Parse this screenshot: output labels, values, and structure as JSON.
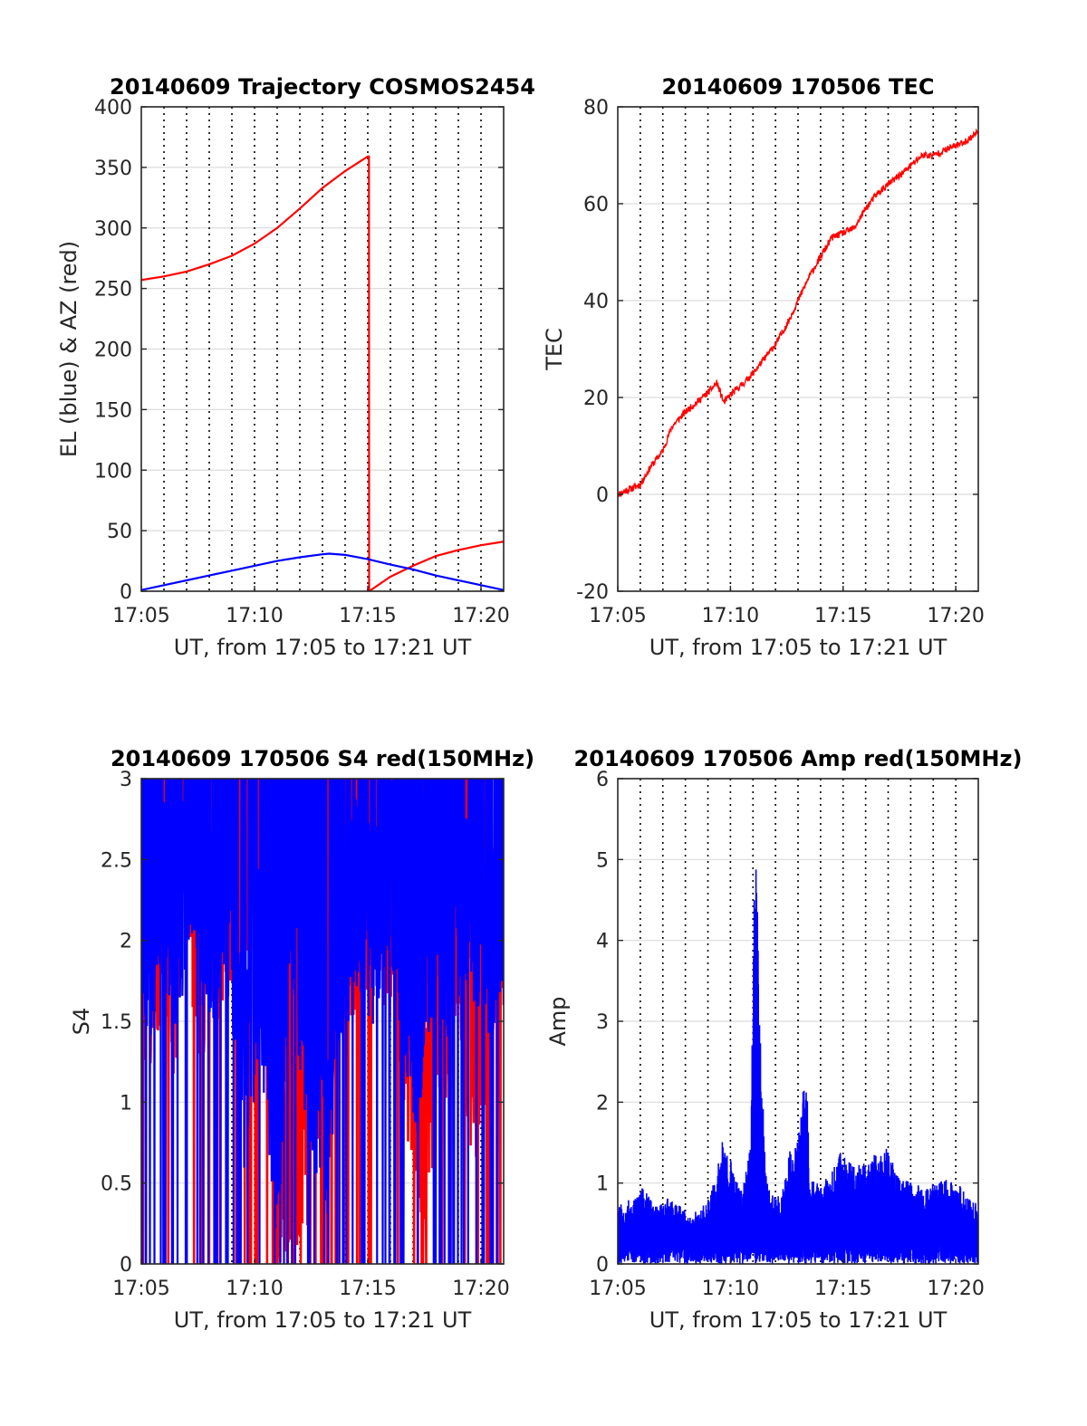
{
  "colors": {
    "red": "#ff0000",
    "blue": "#0000ff",
    "axis": "#262626",
    "grid": "#dcdcdc",
    "vline": "#000000"
  },
  "chart_data": [
    {
      "id": "trajectory",
      "type": "line",
      "title": "20140609 Trajectory COSMOS2454",
      "xlabel": "UT, from 17:05 to 17:21 UT",
      "ylabel": "EL (blue) & AZ (red)",
      "xlim": [
        0,
        16
      ],
      "ylim": [
        0,
        400
      ],
      "x_ticks": [
        0,
        5,
        10,
        15
      ],
      "x_tick_labels": [
        "17:05",
        "17:10",
        "17:15",
        "17:20"
      ],
      "y_ticks": [
        0,
        50,
        100,
        150,
        200,
        250,
        300,
        350,
        400
      ],
      "y_tick_labels": [
        "0",
        "50",
        "100",
        "150",
        "200",
        "250",
        "300",
        "350",
        "400"
      ],
      "series": [
        {
          "color": "red",
          "x": [
            0,
            1,
            2,
            3,
            4,
            5,
            6,
            7,
            8,
            9,
            10,
            10.05,
            10.06,
            11,
            12,
            13,
            14,
            15,
            16
          ],
          "y": [
            257,
            260,
            264,
            270,
            277,
            287,
            300,
            316,
            333,
            347,
            359,
            359,
            0,
            12,
            21,
            29,
            34,
            38,
            41
          ]
        },
        {
          "color": "blue",
          "x": [
            0,
            1,
            2,
            3,
            4,
            5,
            6,
            7,
            8,
            8.3,
            9,
            10,
            11,
            12,
            13,
            14,
            15,
            16
          ],
          "y": [
            1,
            5,
            9,
            13,
            17,
            21,
            25,
            28,
            30.5,
            31,
            30,
            26.5,
            22,
            18,
            13,
            9,
            5,
            1
          ]
        }
      ]
    },
    {
      "id": "tec",
      "type": "line",
      "title": "20140609 170506 TEC",
      "xlabel": "UT, from 17:05 to 17:21 UT",
      "ylabel": "TEC",
      "xlim": [
        0,
        16
      ],
      "ylim": [
        -20,
        80
      ],
      "x_ticks": [
        0,
        5,
        10,
        15
      ],
      "x_tick_labels": [
        "17:05",
        "17:10",
        "17:15",
        "17:20"
      ],
      "y_ticks": [
        -20,
        0,
        20,
        40,
        60,
        80
      ],
      "y_tick_labels": [
        "-20",
        "0",
        "20",
        "40",
        "60",
        "80"
      ],
      "series": [
        {
          "color": "red",
          "x": [
            0,
            0.5,
            1,
            1.5,
            2,
            2.4,
            2.6,
            3,
            3.5,
            4,
            4.4,
            4.7,
            5.1,
            5.6,
            6,
            7,
            7.5,
            8,
            8.5,
            9,
            9.5,
            10,
            10.5,
            11,
            11.5,
            12,
            12.8,
            13.5,
            14,
            14.5,
            15,
            15.5,
            16
          ],
          "y": [
            0,
            1,
            2,
            6,
            9,
            14,
            15,
            17,
            19,
            21,
            23,
            19,
            21,
            23,
            25,
            31,
            35,
            40,
            45,
            49,
            53,
            54,
            55,
            59,
            62,
            64,
            67,
            70,
            70,
            71,
            72,
            73,
            75
          ]
        }
      ]
    },
    {
      "id": "s4",
      "type": "line",
      "title": "20140609 170506 S4 red(150MHz)",
      "xlabel": "UT, from 17:05 to 17:21 UT",
      "ylabel": "S4",
      "xlim": [
        0,
        16
      ],
      "ylim": [
        0,
        3
      ],
      "x_ticks": [
        0,
        5,
        10,
        15
      ],
      "x_tick_labels": [
        "17:05",
        "17:10",
        "17:15",
        "17:20"
      ],
      "y_ticks": [
        0,
        0.5,
        1,
        1.5,
        2,
        2.5,
        3
      ],
      "y_tick_labels": [
        "0",
        "0.5",
        "1",
        "1.5",
        "2",
        "2.5",
        "3"
      ],
      "series": [
        {
          "color": "red",
          "x": [
            0.5,
            1.0,
            1.3,
            2.0,
            2.6,
            3.6,
            4.5,
            5.9,
            6.1,
            7.4,
            8.0,
            9.1,
            9.9,
            10.3,
            11.3,
            12.4,
            13.2,
            14.0,
            14.7,
            15.6
          ],
          "y": [
            1.8,
            2.1,
            1.7,
            2.3,
            1.9,
            2.1,
            2.6,
            2.4,
            0.5,
            0.9,
            1.2,
            2.2,
            2.1,
            2.4,
            1.9,
            0.7,
            1.4,
            2.2,
            1.0,
            2.1
          ]
        },
        {
          "color": "blue",
          "x": [
            0,
            0.3,
            0.8,
            1.5,
            2.3,
            3.0,
            3.7,
            4.6,
            5.2,
            6.0,
            6.6,
            7.2,
            7.6,
            8.2,
            8.7,
            9.5,
            10.2,
            11.0,
            11.7,
            12.2,
            13.0,
            13.6,
            14.3,
            15.0,
            15.6,
            16.0
          ],
          "y": [
            2.2,
            1.9,
            2.4,
            2.1,
            2.6,
            2.0,
            2.5,
            1.1,
            2.0,
            0.7,
            2.4,
            1.6,
            1.3,
            0.9,
            1.9,
            2.3,
            2.1,
            2.5,
            1.8,
            1.4,
            2.2,
            2.0,
            2.4,
            2.1,
            1.9,
            2.2
          ]
        }
      ]
    },
    {
      "id": "amp",
      "type": "line",
      "title": "20140609 170506 Amp red(150MHz)",
      "xlabel": "UT, from 17:05 to 17:21 UT",
      "ylabel": "Amp",
      "xlim": [
        0,
        16
      ],
      "ylim": [
        0,
        6
      ],
      "x_ticks": [
        0,
        5,
        10,
        15
      ],
      "x_tick_labels": [
        "17:05",
        "17:10",
        "17:15",
        "17:20"
      ],
      "y_ticks": [
        0,
        1,
        2,
        3,
        4,
        5,
        6
      ],
      "y_tick_labels": [
        "0",
        "1",
        "2",
        "3",
        "4",
        "5",
        "6"
      ],
      "series": [
        {
          "color": "blue",
          "x": [
            0,
            0.6,
            1.1,
            1.7,
            2.3,
            3.2,
            3.9,
            4.4,
            4.6,
            5.0,
            5.5,
            5.9,
            6.05,
            6.2,
            6.35,
            6.6,
            7.2,
            7.7,
            7.8,
            8.1,
            8.4,
            8.5,
            9.0,
            9.9,
            10.5,
            11.2,
            11.9,
            12.4,
            13.1,
            13.7,
            14.3,
            15.0,
            15.6,
            16.0
          ],
          "y": [
            0.75,
            0.8,
            0.95,
            0.7,
            0.85,
            0.6,
            0.75,
            1.1,
            1.55,
            1.3,
            0.9,
            1.5,
            5.05,
            4.75,
            2.6,
            1.1,
            0.8,
            1.5,
            1.2,
            2.1,
            2.25,
            1.1,
            0.95,
            1.4,
            1.2,
            1.3,
            1.5,
            1.1,
            1.0,
            0.95,
            1.05,
            1.05,
            0.8,
            0.75
          ]
        }
      ]
    }
  ]
}
